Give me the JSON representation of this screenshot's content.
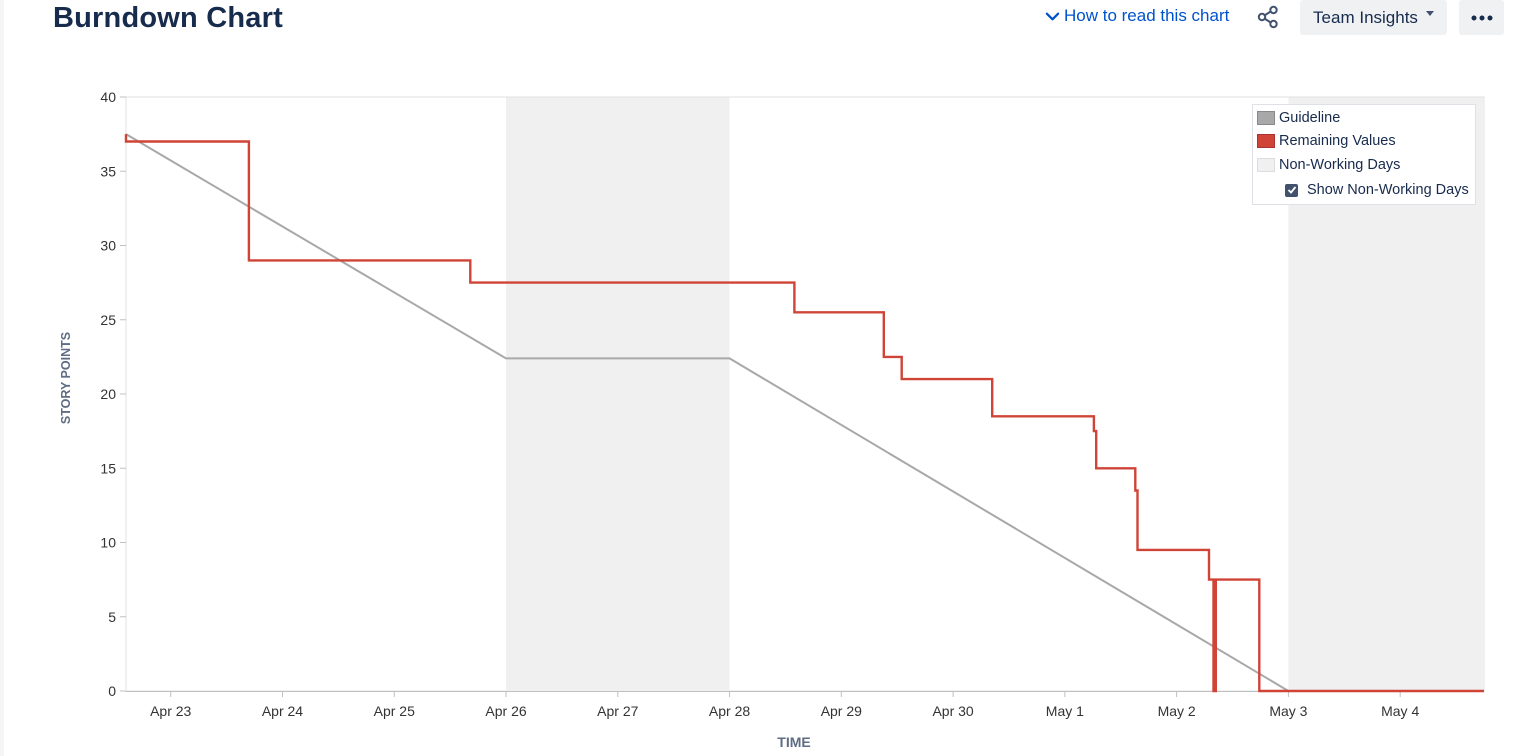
{
  "header": {
    "title": "Burndown Chart",
    "howto_label": "How to read this chart",
    "insights_label": "Team Insights"
  },
  "colors": {
    "guideline": "#a8a8a8",
    "remaining": "#d04437",
    "non_working": "#f0f0f0",
    "link": "#0052cc"
  },
  "legend": {
    "items": [
      "Guideline",
      "Remaining Values",
      "Non-Working Days"
    ],
    "show_non_working_label": "Show Non-Working Days",
    "show_non_working_checked": true
  },
  "chart_data": {
    "type": "line",
    "title": "",
    "xlabel": "TIME",
    "ylabel": "STORY POINTS",
    "ylim": [
      0,
      40
    ],
    "yticks": [
      0,
      5,
      10,
      15,
      20,
      25,
      30,
      35,
      40
    ],
    "x_unit": "days since Apr 23",
    "xlim": [
      -0.4,
      11.75
    ],
    "xticks": [
      {
        "x": 0,
        "label": "Apr 23"
      },
      {
        "x": 1,
        "label": "Apr 24"
      },
      {
        "x": 2,
        "label": "Apr 25"
      },
      {
        "x": 3,
        "label": "Apr 26"
      },
      {
        "x": 4,
        "label": "Apr 27"
      },
      {
        "x": 5,
        "label": "Apr 28"
      },
      {
        "x": 6,
        "label": "Apr 29"
      },
      {
        "x": 7,
        "label": "Apr 30"
      },
      {
        "x": 8,
        "label": "May 1"
      },
      {
        "x": 9,
        "label": "May 2"
      },
      {
        "x": 10,
        "label": "May 3"
      },
      {
        "x": 11,
        "label": "May 4"
      }
    ],
    "non_working_ranges": [
      [
        3,
        5
      ],
      [
        10,
        11.75
      ]
    ],
    "series": [
      {
        "name": "Guideline",
        "points": [
          [
            -0.4,
            37.5
          ],
          [
            3,
            22.4
          ],
          [
            5,
            22.4
          ],
          [
            10,
            0
          ],
          [
            11.75,
            0
          ]
        ]
      },
      {
        "name": "Remaining Values",
        "points": [
          [
            -0.4,
            37.5
          ],
          [
            -0.4,
            37
          ],
          [
            0.7,
            37
          ],
          [
            0.7,
            29
          ],
          [
            2.68,
            29
          ],
          [
            2.68,
            27.5
          ],
          [
            5.58,
            27.5
          ],
          [
            5.58,
            25.5
          ],
          [
            6.38,
            25.5
          ],
          [
            6.38,
            22.5
          ],
          [
            6.54,
            22.5
          ],
          [
            6.54,
            21
          ],
          [
            7.35,
            21
          ],
          [
            7.35,
            18.5
          ],
          [
            8.26,
            18.5
          ],
          [
            8.26,
            17.5
          ],
          [
            8.28,
            17.5
          ],
          [
            8.28,
            15
          ],
          [
            8.63,
            15
          ],
          [
            8.63,
            13.5
          ],
          [
            8.65,
            13.5
          ],
          [
            8.65,
            9.5
          ],
          [
            9.29,
            9.5
          ],
          [
            9.29,
            7.5
          ],
          [
            9.33,
            7.5
          ],
          [
            9.33,
            0
          ],
          [
            9.35,
            0
          ],
          [
            9.35,
            7.5
          ],
          [
            9.74,
            7.5
          ],
          [
            9.74,
            0
          ],
          [
            11.75,
            0
          ]
        ]
      }
    ]
  }
}
